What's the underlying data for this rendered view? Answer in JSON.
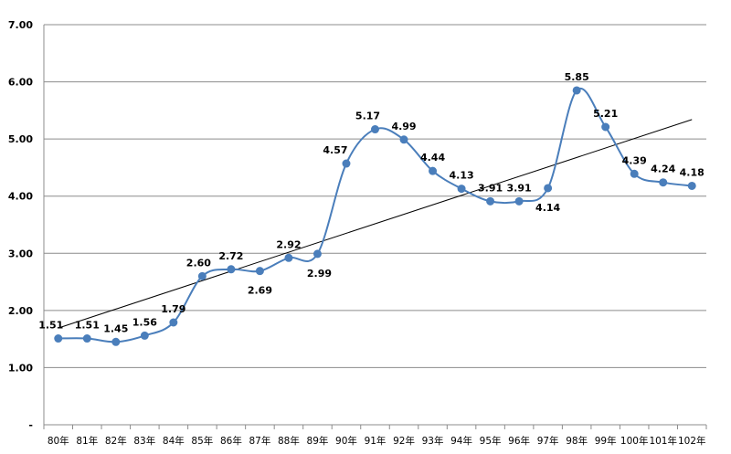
{
  "chart_data": {
    "type": "line",
    "categories": [
      "80年",
      "81年",
      "82年",
      "83年",
      "84年",
      "85年",
      "86年",
      "87年",
      "88年",
      "89年",
      "90年",
      "91年",
      "92年",
      "93年",
      "94年",
      "95年",
      "96年",
      "97年",
      "98年",
      "99年",
      "100年",
      "101年",
      "102年"
    ],
    "series": [
      {
        "values": [
          1.51,
          1.51,
          1.45,
          1.56,
          1.79,
          2.6,
          2.72,
          2.69,
          2.92,
          2.99,
          4.57,
          5.17,
          4.99,
          4.44,
          4.13,
          3.91,
          3.91,
          4.14,
          5.85,
          5.21,
          4.39,
          4.24,
          4.18
        ],
        "color": "#4a7ebb",
        "smooth": true,
        "marker": "circle"
      }
    ],
    "trendline": {
      "type": "linear",
      "color": "#000000"
    },
    "data_labels": [
      "1.51",
      "1.51",
      "1.45",
      "1.56",
      "1.79",
      "2.60",
      "2.72",
      "2.69",
      "2.92",
      "2.99",
      "4.57",
      "5.17",
      "4.99",
      "4.44",
      "4.13",
      "3.91",
      "3.91",
      "4.14",
      "5.85",
      "5.21",
      "4.39",
      "4.24",
      "4.18"
    ],
    "y_ticks": [
      "-",
      "1.00",
      "2.00",
      "3.00",
      "4.00",
      "5.00",
      "6.00",
      "7.00"
    ],
    "ylim": [
      0,
      7
    ],
    "grid": true,
    "title": "",
    "xlabel": "",
    "ylabel": ""
  }
}
